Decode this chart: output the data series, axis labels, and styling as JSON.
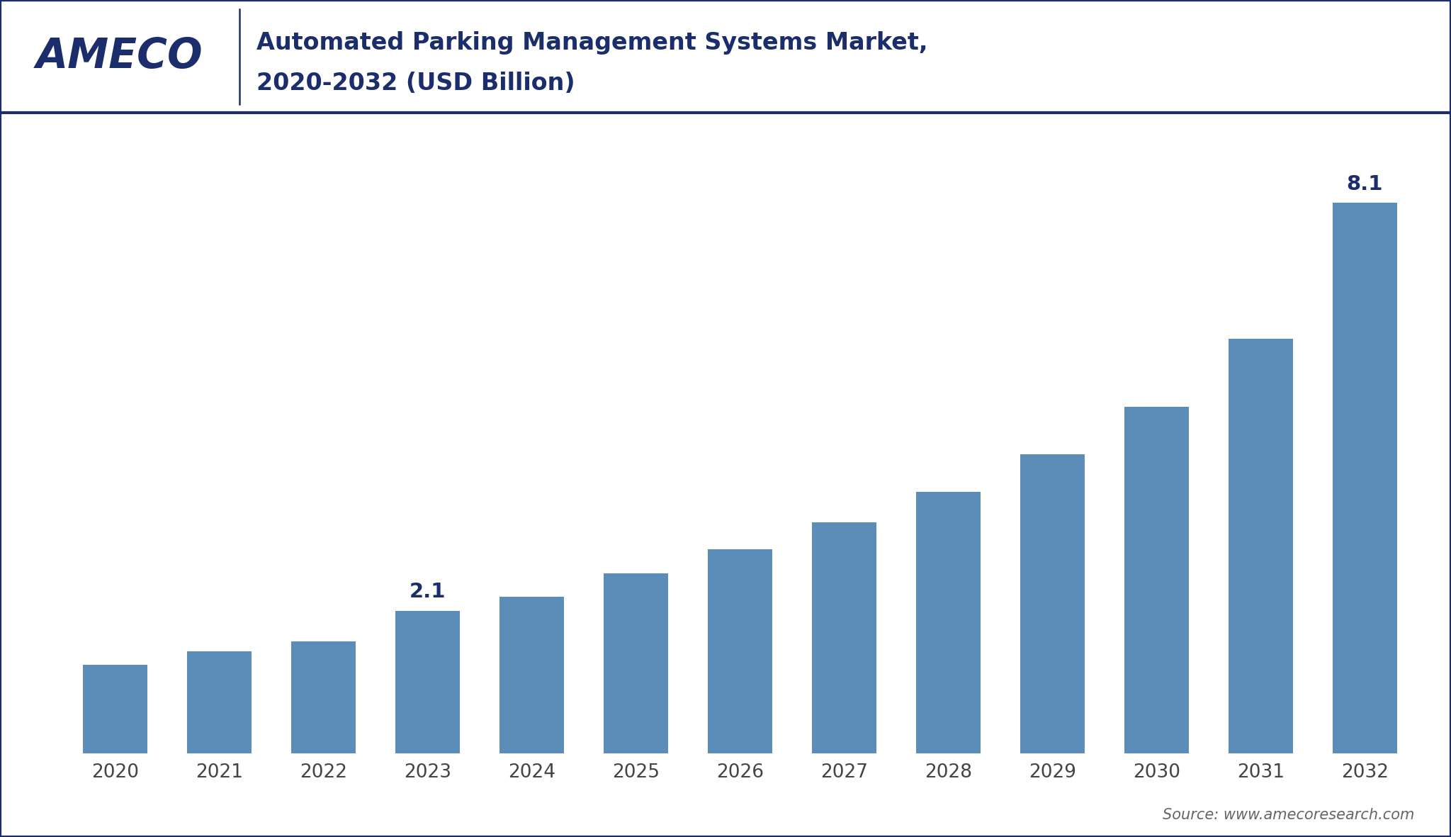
{
  "title_line1": "Automated Parking Management Systems Market,",
  "title_line2": "2020-2032 (USD Billion)",
  "logo_text": "AMECO",
  "source_text": "Source: www.amecoresearch.com",
  "years": [
    2020,
    2021,
    2022,
    2023,
    2024,
    2025,
    2026,
    2027,
    2028,
    2029,
    2030,
    2031,
    2032
  ],
  "values": [
    1.3,
    1.5,
    1.65,
    2.1,
    2.3,
    2.65,
    3.0,
    3.4,
    3.85,
    4.4,
    5.1,
    6.1,
    8.1
  ],
  "bar_color": "#5B8DB8",
  "annotated_values": {
    "2023": "2.1",
    "2032": "8.1"
  },
  "header_bg": "#FFFFFF",
  "logo_color": "#1B2E6B",
  "title_color": "#1B2E6B",
  "bar_width": 0.62,
  "ylim": [
    0,
    9.2
  ],
  "tick_label_fontsize": 19,
  "annotation_fontsize": 21,
  "title_fontsize": 24,
  "logo_fontsize": 42,
  "source_fontsize": 15,
  "background_color": "#FFFFFF",
  "border_color": "#1B2E6B",
  "axis_label_color": "#444444"
}
